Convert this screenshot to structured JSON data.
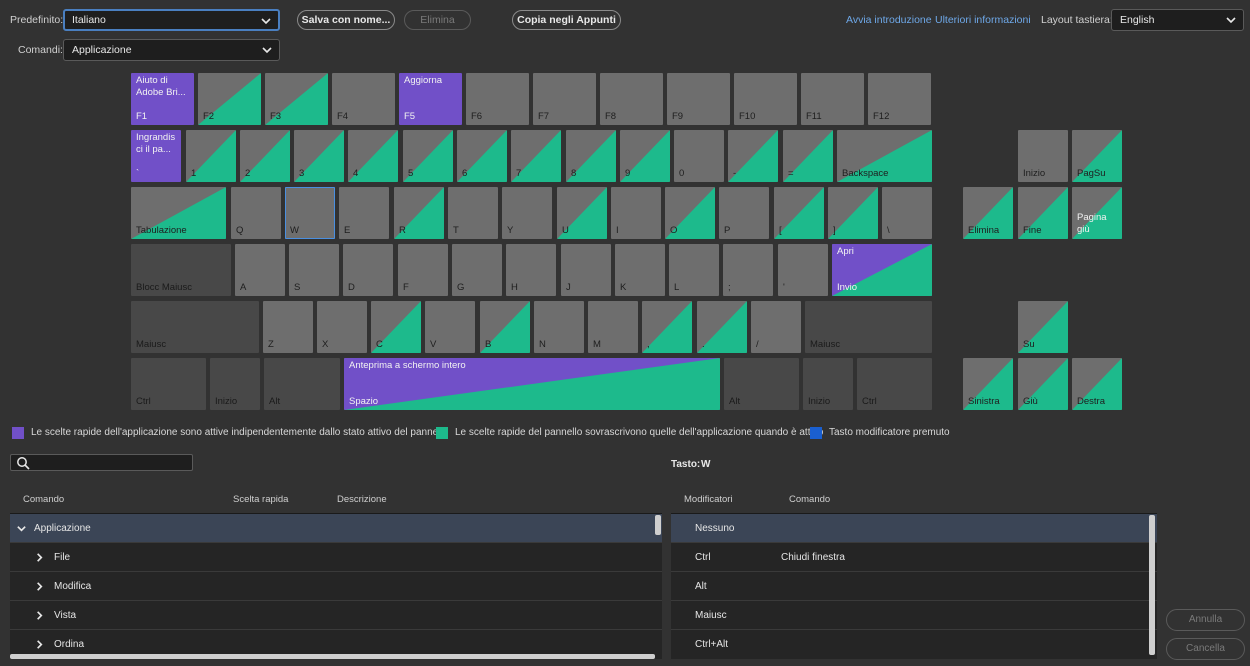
{
  "top": {
    "preset_label": "Predefinito:",
    "preset_value": "Italiano",
    "commands_label": "Comandi:",
    "commands_value": "Applicazione",
    "save_as": "Salva con nome...",
    "delete": "Elimina",
    "copy": "Copia negli Appunti",
    "start_intro": "Avvia introduzione",
    "more_info": "Ulteriori informazioni",
    "layout_label": "Layout tastiera:",
    "layout_value": "English"
  },
  "keys": {
    "f1": {
      "label": "F1",
      "title": "Aiuto di Adobe Bri..."
    },
    "f2": "F2",
    "f3": "F3",
    "f4": "F4",
    "f5": {
      "label": "F5",
      "title": "Aggiorna"
    },
    "f6": "F6",
    "f7": "F7",
    "f8": "F8",
    "f9": "F9",
    "f10": "F10",
    "f11": "F11",
    "f12": "F12",
    "grave": {
      "label": "`",
      "title": "Ingrandis ci il pa..."
    },
    "n1": "1",
    "n2": "2",
    "n3": "3",
    "n4": "4",
    "n5": "5",
    "n6": "6",
    "n7": "7",
    "n8": "8",
    "n9": "9",
    "n0": "0",
    "minus": "-",
    "equal": "=",
    "backspace": "Backspace",
    "home": "Inizio",
    "pgup": "PagSu",
    "tab": "Tabulazione",
    "q": "Q",
    "w": "W",
    "e": "E",
    "r": "R",
    "t": "T",
    "y": "Y",
    "u": "U",
    "i": "I",
    "o": "O",
    "p": "P",
    "lbr": "[",
    "rbr": "]",
    "bslash": "\\",
    "del": "Elimina",
    "end": "Fine",
    "pgdn": "Pagina giù",
    "caps": "Blocc Maiusc",
    "a": "A",
    "s": "S",
    "d": "D",
    "f": "F",
    "g": "G",
    "h": "H",
    "j": "J",
    "k": "K",
    "l": "L",
    "semi": ";",
    "quote": "'",
    "enter": {
      "label": "Invio",
      "title": "Apri"
    },
    "lshift": "Maiusc",
    "z": "Z",
    "x": "X",
    "c": "C",
    "v": "V",
    "b": "B",
    "n": "N",
    "m": "M",
    "comma": ",",
    "period": ".",
    "slash": "/",
    "rshift": "Maiusc",
    "up": "Su",
    "lctrl": "Ctrl",
    "lwin": "Inizio",
    "lalt": "Alt",
    "space": {
      "label": "Spazio",
      "title": "Anteprima a schermo intero"
    },
    "ralt": "Alt",
    "rwin": "Inizio",
    "rctrl": "Ctrl",
    "left": "Sinistra",
    "down": "Giù",
    "right": "Destra"
  },
  "legend": {
    "purple": "Le scelte rapide dell'applicazione sono attive indipendentemente dallo stato attivo del pannello",
    "green": "Le scelte rapide del pannello sovrascrivono quelle dell'applicazione quando è attivo",
    "blue": "Tasto modificatore premuto"
  },
  "key_info": {
    "label": "Tasto:",
    "value": "W"
  },
  "search": {
    "placeholder": ""
  },
  "commands_table": {
    "headers": [
      "Comando",
      "Scelta rapida",
      "Descrizione"
    ],
    "rows": [
      "Applicazione",
      "File",
      "Modifica",
      "Vista",
      "Ordina"
    ]
  },
  "modifiers_table": {
    "headers": [
      "Modificatori",
      "Comando"
    ],
    "rows": [
      {
        "mod": "Nessuno",
        "cmd": ""
      },
      {
        "mod": "Ctrl",
        "cmd": "Chiudi finestra"
      },
      {
        "mod": "Alt",
        "cmd": ""
      },
      {
        "mod": "Maiusc",
        "cmd": ""
      },
      {
        "mod": "Ctrl+Alt",
        "cmd": ""
      }
    ]
  },
  "buttons": {
    "undo": "Annulla",
    "cancel": "Cancella"
  },
  "colors": {
    "purple": "#7150c8",
    "green": "#1dba8c",
    "blue": "#1a5fd0",
    "key": "#6e6e6e"
  }
}
